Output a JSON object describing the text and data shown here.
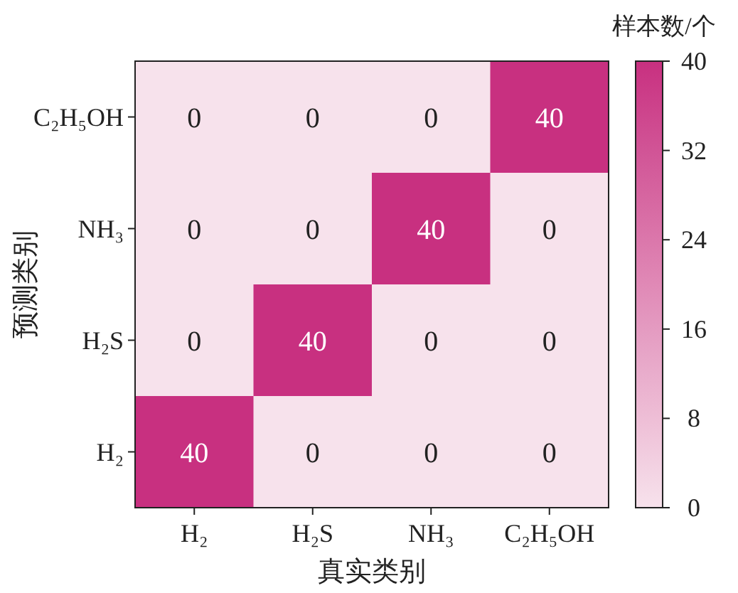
{
  "chart_data": {
    "type": "heatmap",
    "xlabel": "真实类别",
    "ylabel": "预测类别",
    "clabel": "样本数/个",
    "categories": [
      "H₂",
      "H₂S",
      "NH₃",
      "C₂H₅OH"
    ],
    "y_categories": [
      "C₂H₅OH",
      "NH₃",
      "H₂S",
      "H₂"
    ],
    "cells": [
      [
        0,
        0,
        0,
        40
      ],
      [
        0,
        0,
        40,
        0
      ],
      [
        0,
        40,
        0,
        0
      ],
      [
        40,
        0,
        0,
        0
      ]
    ],
    "data_labels": true,
    "clim": [
      0,
      40
    ],
    "cticks": [
      0,
      8,
      16,
      24,
      32,
      40
    ]
  }
}
